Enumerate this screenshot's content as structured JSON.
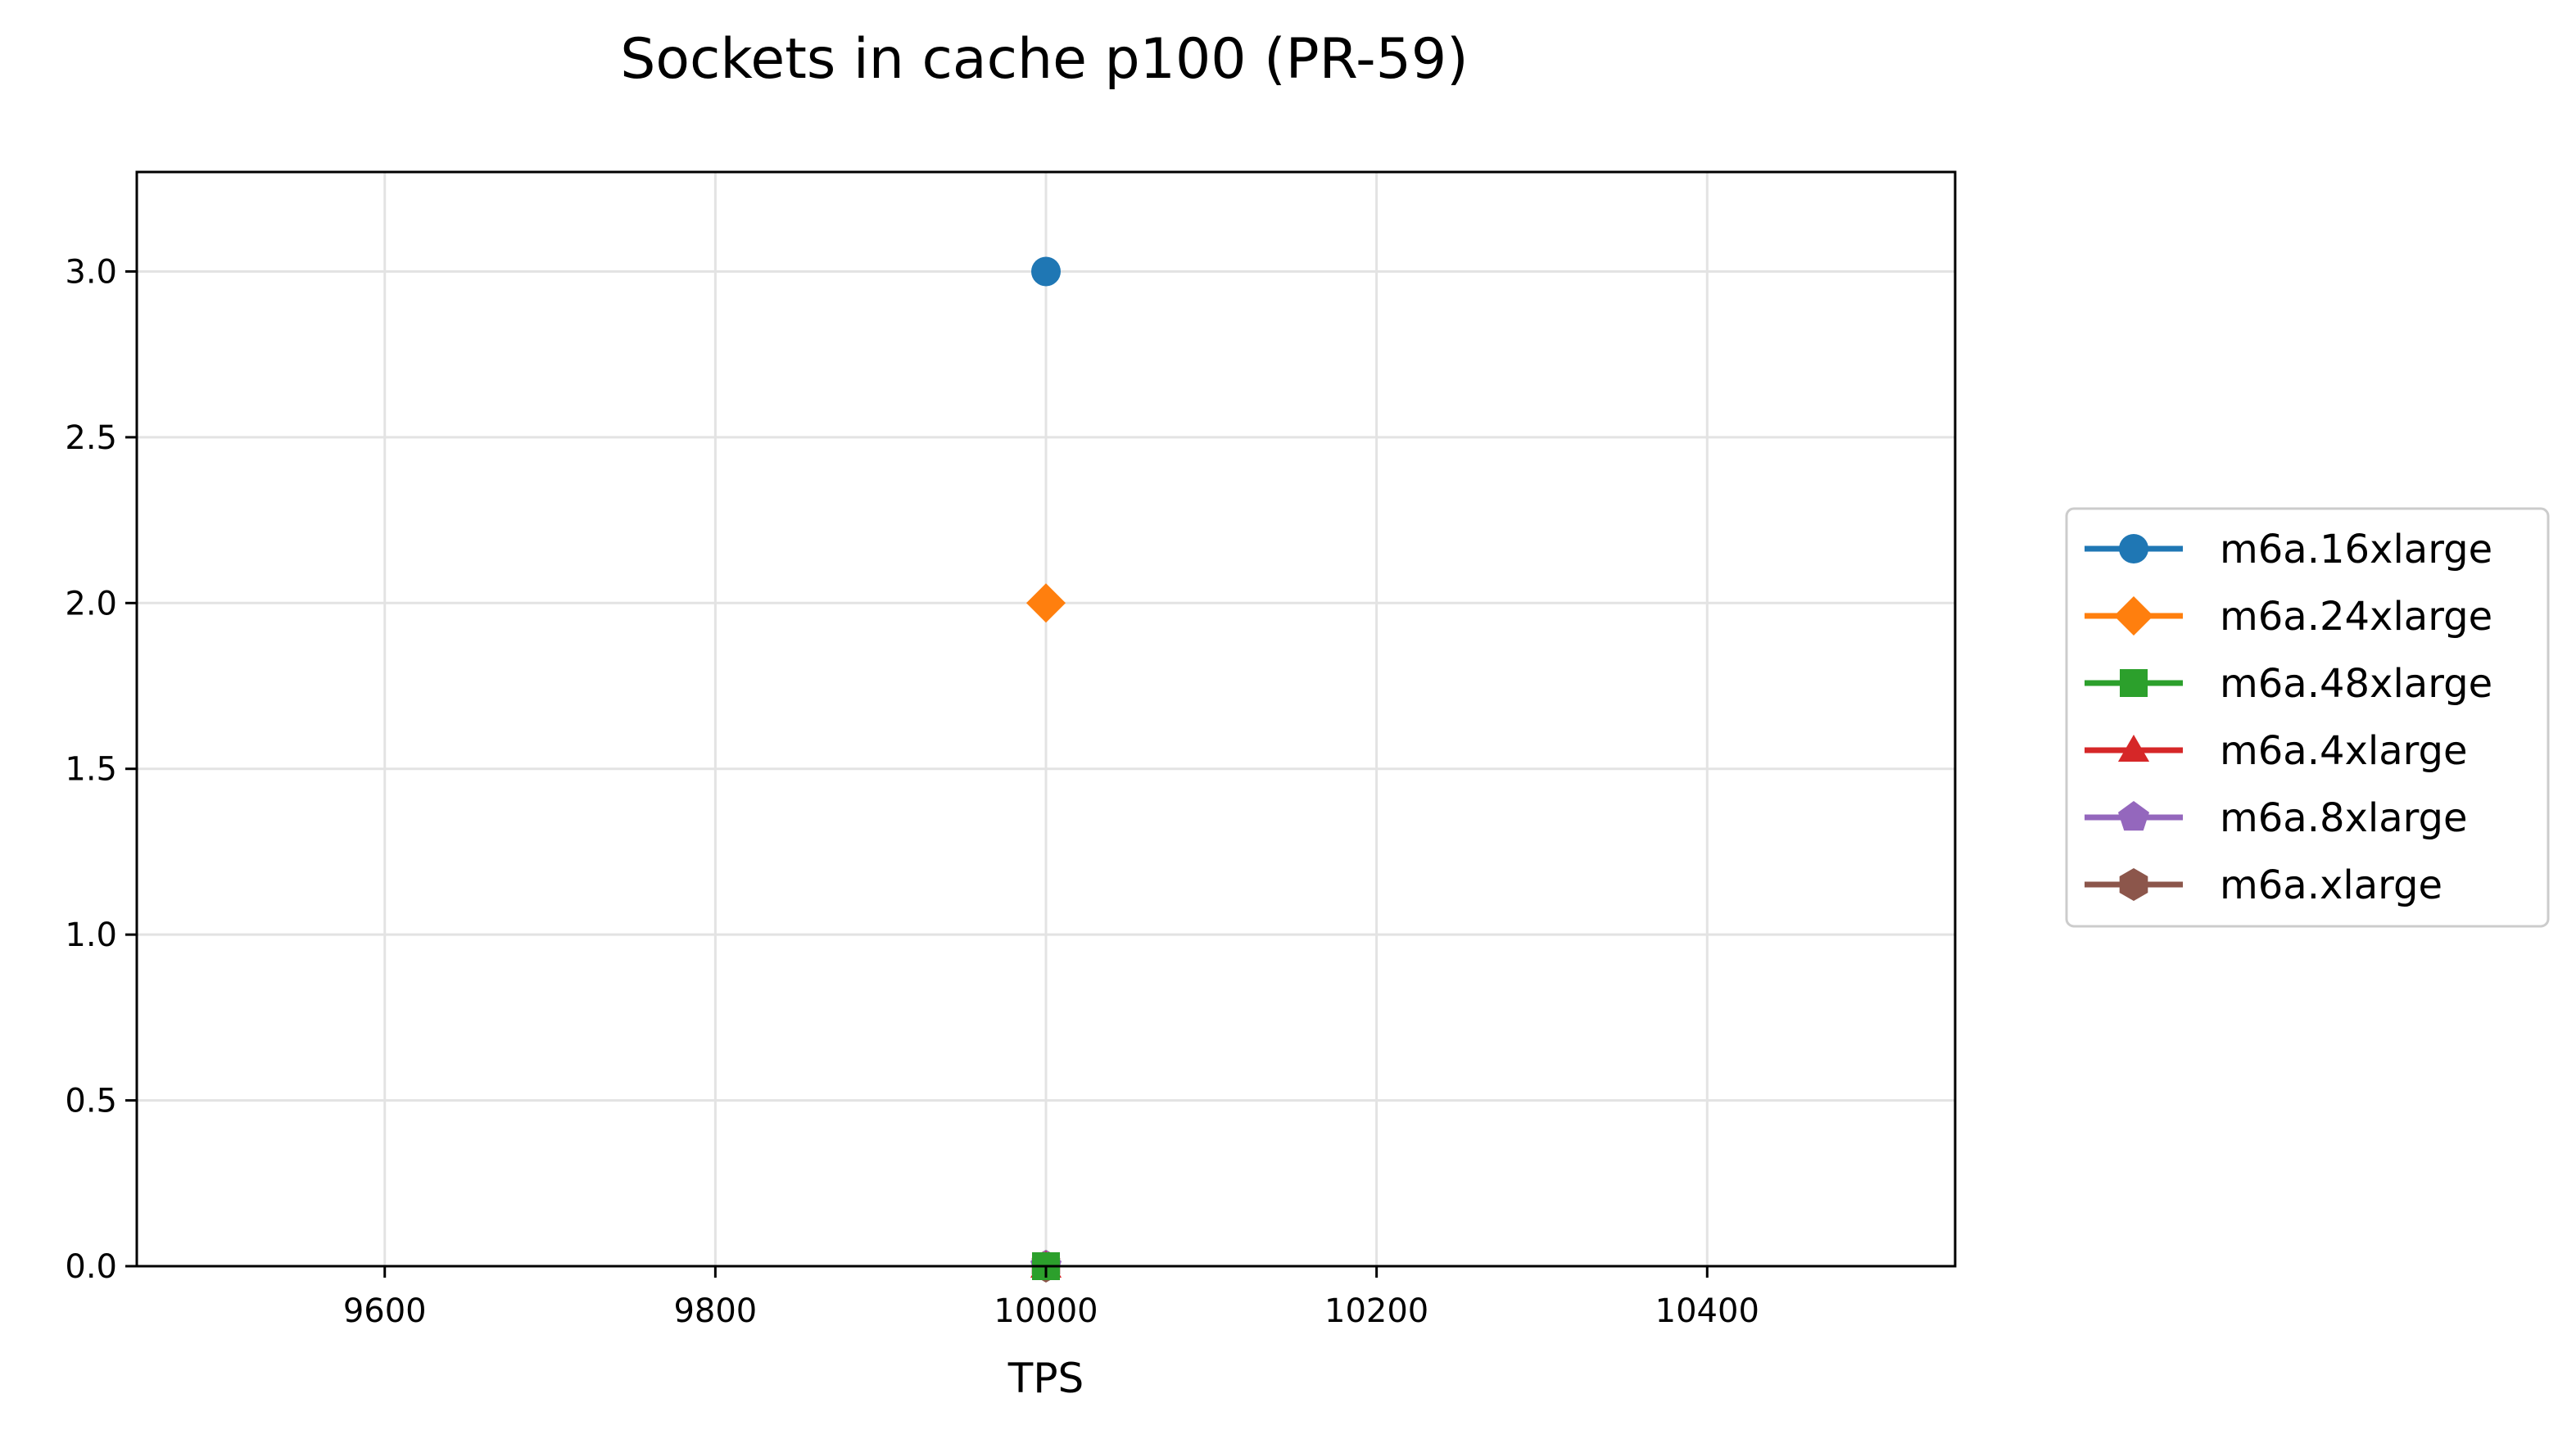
{
  "chart_data": {
    "type": "line",
    "title": "Sockets in cache p100 (PR-59)",
    "xlabel": "TPS",
    "ylabel": "",
    "xlim": [
      9450,
      10550
    ],
    "ylim": [
      0,
      3.3
    ],
    "xticks": [
      9600,
      9800,
      10000,
      10200,
      10400
    ],
    "yticks": [
      0.0,
      0.5,
      1.0,
      1.5,
      2.0,
      2.5,
      3.0
    ],
    "xtick_labels": [
      "9600",
      "9800",
      "10000",
      "10200",
      "10400"
    ],
    "ytick_labels": [
      "0.0",
      "0.5",
      "1.0",
      "1.5",
      "2.0",
      "2.5",
      "3.0"
    ],
    "grid": true,
    "legend_position": "right-outside",
    "series": [
      {
        "name": "m6a.16xlarge",
        "color": "#1f77b4",
        "marker": "circle",
        "x": [
          10000
        ],
        "y": [
          3
        ]
      },
      {
        "name": "m6a.24xlarge",
        "color": "#ff7f0e",
        "marker": "diamond",
        "x": [
          10000
        ],
        "y": [
          2
        ]
      },
      {
        "name": "m6a.48xlarge",
        "color": "#2ca02c",
        "marker": "square",
        "x": [
          10000
        ],
        "y": [
          0
        ]
      },
      {
        "name": "m6a.4xlarge",
        "color": "#d62728",
        "marker": "triangle",
        "x": [
          10000
        ],
        "y": [
          0
        ]
      },
      {
        "name": "m6a.8xlarge",
        "color": "#9467bd",
        "marker": "pentagon",
        "x": [
          10000
        ],
        "y": [
          0
        ]
      },
      {
        "name": "m6a.xlarge",
        "color": "#8c564b",
        "marker": "hexagon",
        "x": [
          10000
        ],
        "y": [
          0
        ]
      }
    ]
  }
}
